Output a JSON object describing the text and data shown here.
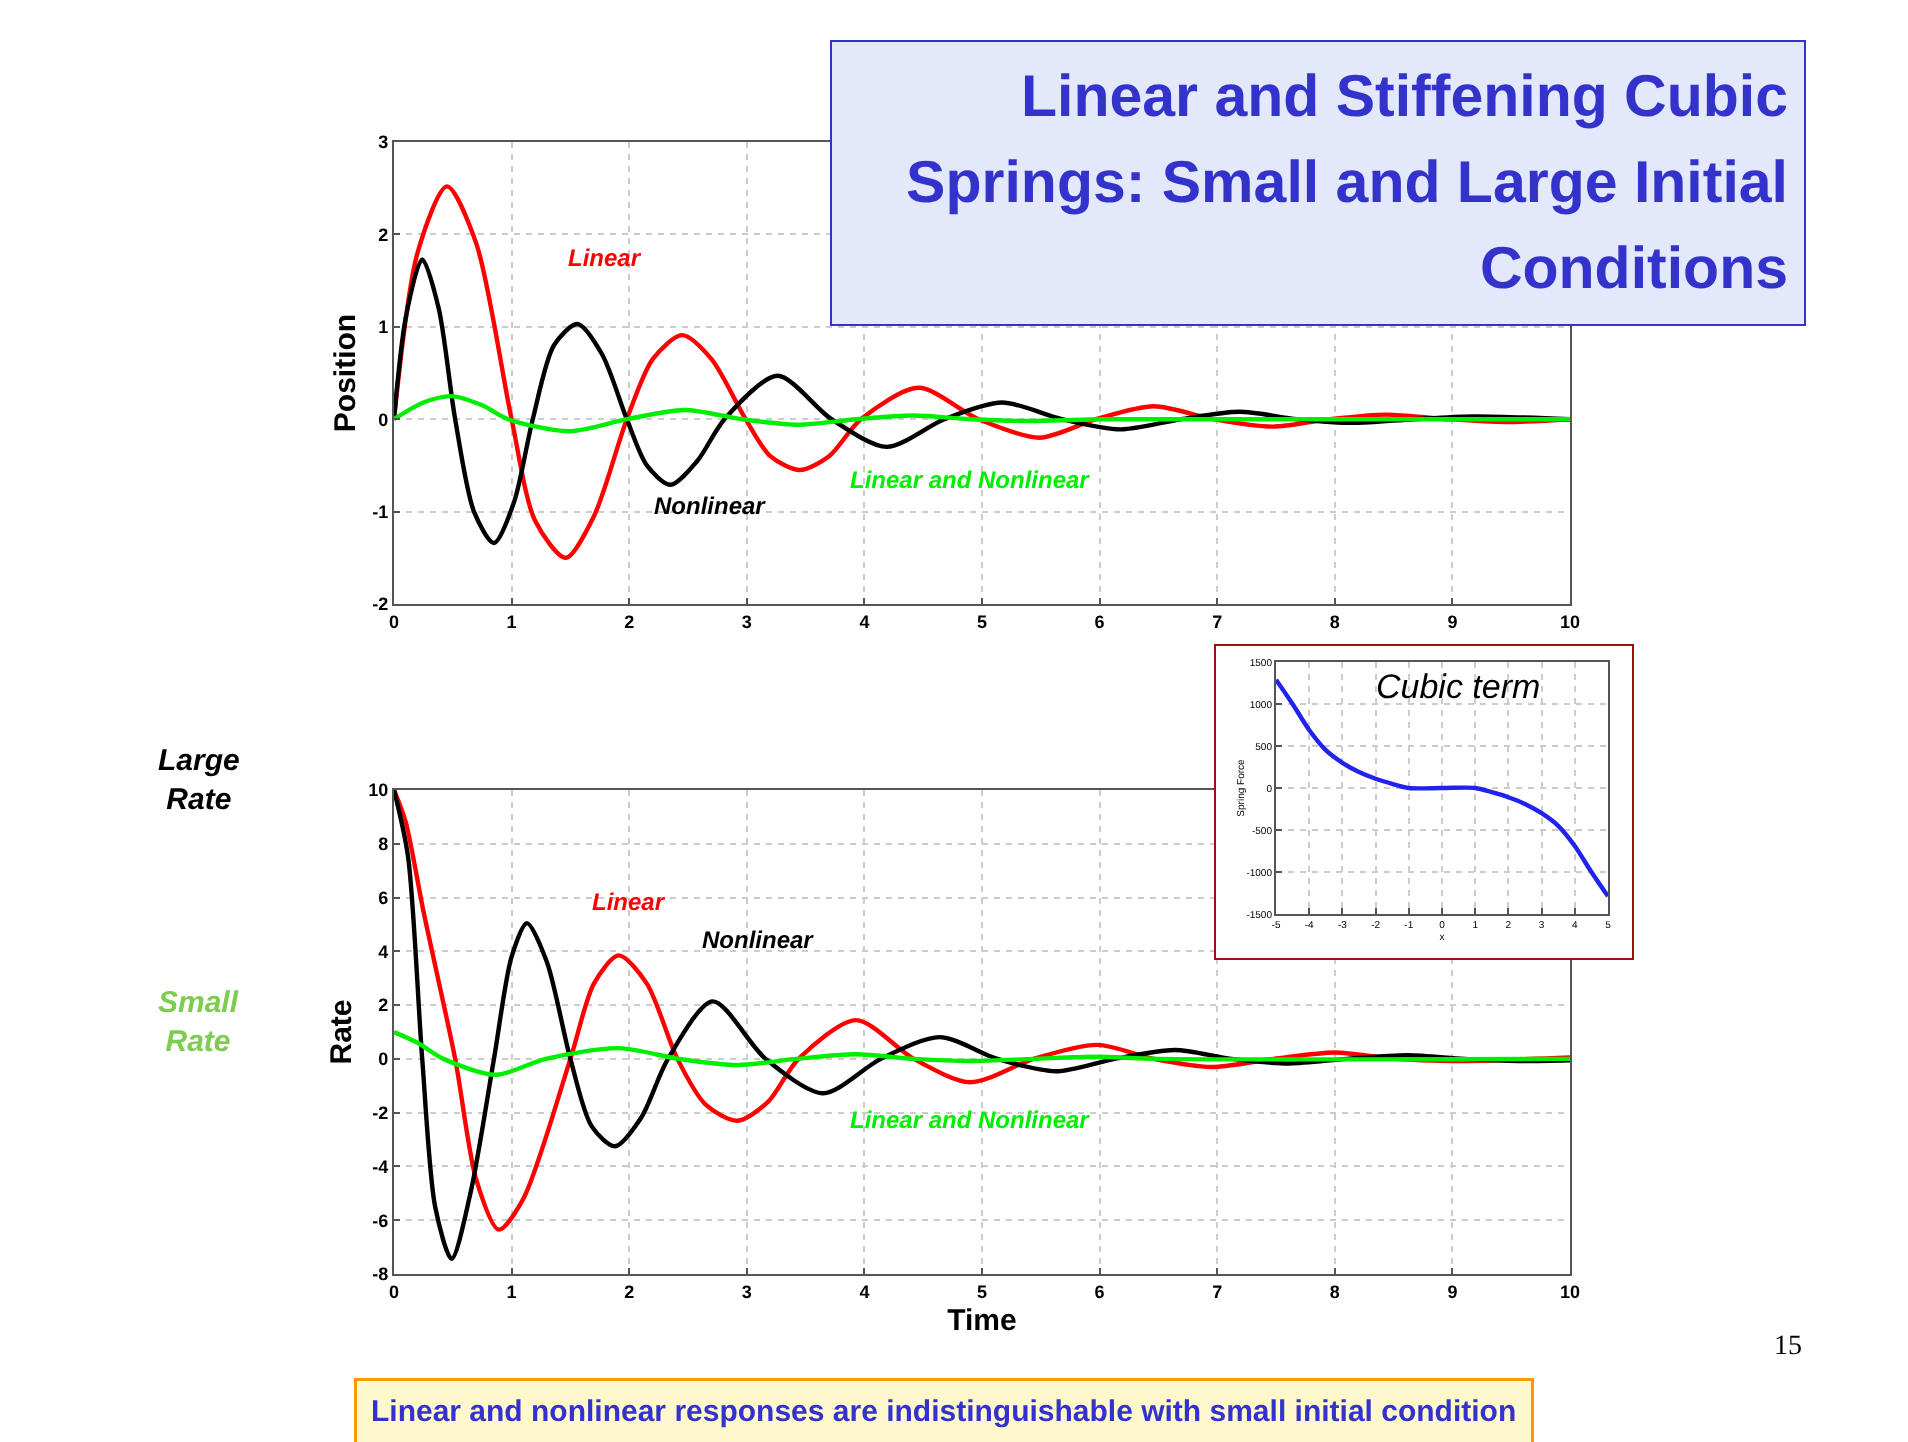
{
  "chart_data": [
    {
      "type": "line",
      "title": "Linear and Stiffening Cubic Springs: Small and Large Initial Conditions",
      "ylabel": "Position",
      "xlim": [
        0,
        10
      ],
      "xticks": [
        0,
        1,
        2,
        3,
        4,
        5,
        6,
        7,
        8,
        9,
        10
      ],
      "ylim": [
        -2,
        3
      ],
      "yticks": [
        -2,
        -1,
        0,
        1,
        2,
        3
      ],
      "grid": true,
      "marker": "none",
      "line_style": "solid",
      "series": [
        {
          "name": "Linear",
          "color": "#ff0000",
          "x": [
            0,
            0.2,
            0.45,
            0.7,
            1.0,
            1.2,
            1.46,
            1.7,
            1.98,
            2.2,
            2.45,
            2.7,
            2.99,
            3.2,
            3.45,
            3.7,
            3.97,
            4.46,
            4.97,
            5.49,
            5.97,
            6.46,
            6.97,
            7.47,
            7.95,
            8.44,
            8.95,
            9.45,
            10
          ],
          "values": [
            0,
            1.8,
            2.52,
            1.9,
            0,
            -1.1,
            -1.5,
            -1.05,
            0,
            0.65,
            0.91,
            0.65,
            0,
            -0.4,
            -0.55,
            -0.4,
            0,
            0.34,
            0,
            -0.2,
            0,
            0.14,
            0,
            -0.08,
            0,
            0.05,
            0,
            -0.03,
            0
          ]
        },
        {
          "name": "Nonlinear",
          "color": "#000000",
          "x": [
            0,
            0.1,
            0.24,
            0.38,
            0.52,
            0.68,
            0.85,
            1.02,
            1.18,
            1.36,
            1.56,
            1.77,
            1.98,
            2.15,
            2.35,
            2.58,
            2.81,
            3.26,
            3.72,
            4.19,
            4.68,
            5.17,
            5.68,
            6.18,
            6.69,
            7.19,
            7.68,
            8.16,
            8.67,
            9.17,
            10
          ],
          "values": [
            0,
            1.1,
            1.73,
            1.2,
            0,
            -1.0,
            -1.34,
            -0.9,
            0,
            0.8,
            1.03,
            0.7,
            0,
            -0.5,
            -0.71,
            -0.45,
            0,
            0.47,
            0,
            -0.3,
            0,
            0.18,
            0,
            -0.11,
            0,
            0.08,
            0,
            -0.04,
            0,
            0.03,
            0
          ]
        },
        {
          "name": "Linear and Nonlinear",
          "color": "#00ee00",
          "x": [
            0,
            0.25,
            0.49,
            0.75,
            0.97,
            1.49,
            1.98,
            2.47,
            2.96,
            3.44,
            3.93,
            4.41,
            4.9,
            5.4,
            6,
            10
          ],
          "values": [
            0,
            0.18,
            0.25,
            0.15,
            0,
            -0.13,
            0,
            0.1,
            0,
            -0.06,
            0,
            0.04,
            0,
            -0.02,
            0,
            0
          ]
        }
      ]
    },
    {
      "type": "line",
      "xlabel": "Time",
      "ylabel": "Rate",
      "xlim": [
        0,
        10
      ],
      "xticks": [
        0,
        1,
        2,
        3,
        4,
        5,
        6,
        7,
        8,
        9,
        10
      ],
      "ylim": [
        -8,
        10
      ],
      "yticks": [
        -8,
        -6,
        -4,
        -2,
        0,
        2,
        4,
        6,
        8,
        10
      ],
      "grid": true,
      "marker": "none",
      "line_style": "solid",
      "annotations": [
        "Large Rate",
        "Small Rate",
        "Linear and nonlinear responses are indistinguishable with small initial condition",
        "15"
      ],
      "series": [
        {
          "name": "Linear",
          "color": "#ff0000",
          "x": [
            0,
            0.1,
            0.25,
            0.52,
            0.7,
            0.89,
            1.1,
            1.5,
            1.7,
            1.91,
            2.15,
            2.41,
            2.65,
            2.92,
            3.18,
            3.44,
            3.93,
            4.42,
            4.9,
            5.44,
            5.98,
            6.46,
            6.95,
            7.48,
            8.0,
            8.5,
            9.0,
            10
          ],
          "values": [
            10,
            8.8,
            5.5,
            0,
            -4.5,
            -6.35,
            -5.2,
            0,
            2.8,
            3.85,
            2.8,
            0,
            -1.7,
            -2.3,
            -1.6,
            0,
            1.44,
            0,
            -0.87,
            0,
            0.52,
            0,
            -0.3,
            0,
            0.24,
            0,
            -0.08,
            0.05
          ]
        },
        {
          "name": "Nonlinear",
          "color": "#000000",
          "x": [
            0,
            0.12,
            0.24,
            0.35,
            0.49,
            0.65,
            0.85,
            1.0,
            1.13,
            1.3,
            1.5,
            1.68,
            1.88,
            2.1,
            2.33,
            2.71,
            3.16,
            3.65,
            4.14,
            4.64,
            5.13,
            5.63,
            6.13,
            6.64,
            7.12,
            7.61,
            8.1,
            8.62,
            9.1,
            9.56,
            10
          ],
          "values": [
            10,
            7.5,
            0,
            -5.5,
            -7.43,
            -5.0,
            0,
            3.8,
            5.05,
            3.6,
            0,
            -2.5,
            -3.25,
            -2.2,
            0,
            2.14,
            0,
            -1.28,
            0,
            0.81,
            0,
            -0.46,
            0,
            0.33,
            0,
            -0.17,
            0,
            0.14,
            0,
            -0.08,
            -0.05
          ]
        },
        {
          "name": "Linear and Nonlinear",
          "color": "#00ee00",
          "x": [
            0,
            0.2,
            0.42,
            0.87,
            1.29,
            1.91,
            2.42,
            2.92,
            3.42,
            3.93,
            4.42,
            4.9,
            5.44,
            5.98,
            6.5,
            10
          ],
          "values": [
            1.0,
            0.6,
            0,
            -0.59,
            0,
            0.4,
            0,
            -0.23,
            0,
            0.17,
            0,
            -0.08,
            0,
            0.08,
            0,
            0
          ]
        }
      ]
    },
    {
      "type": "line",
      "title": "Cubic term",
      "xlabel": "x",
      "ylabel": "Spring Force",
      "xlim": [
        -5,
        5
      ],
      "xticks": [
        -5,
        -4,
        -3,
        -2,
        -1,
        0,
        1,
        2,
        3,
        4,
        5
      ],
      "ylim": [
        -1500,
        1500
      ],
      "yticks": [
        -1500,
        -1000,
        -500,
        0,
        500,
        1000,
        1500
      ],
      "grid": true,
      "marker": "none",
      "line_style": "solid",
      "series": [
        {
          "color": "#2222ee",
          "x": [
            -5,
            -4.5,
            -4,
            -3.5,
            -3,
            -2.5,
            -2,
            -1.5,
            -1,
            0,
            1,
            1.5,
            2,
            2.5,
            3,
            3.5,
            4,
            4.5,
            5
          ],
          "values": [
            1290,
            1000,
            690,
            450,
            300,
            190,
            110,
            50,
            0,
            0,
            0,
            -50,
            -110,
            -190,
            -300,
            -450,
            -690,
            -1000,
            -1290
          ]
        }
      ]
    }
  ]
}
